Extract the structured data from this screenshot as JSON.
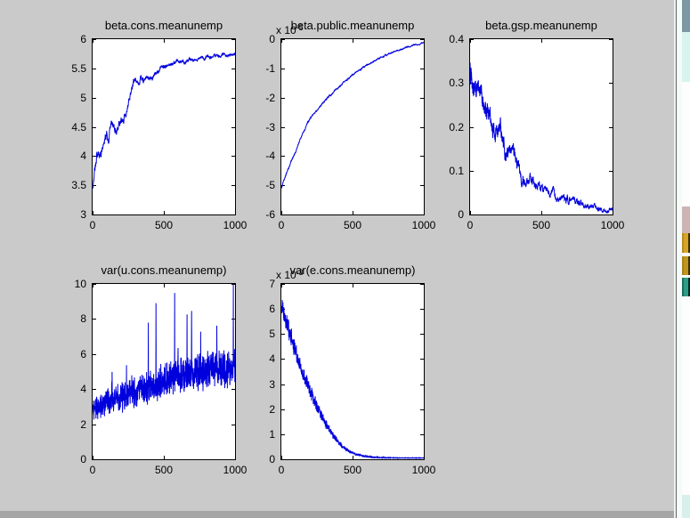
{
  "window": {
    "kind": "matlab-figure",
    "colors": {
      "figure_background": "#cacaca",
      "plot_background": "#ffffff",
      "line_color": "#0000dd",
      "axis_color": "#000000",
      "desktop_cyan": "#d9f3ee",
      "desktop_slate": "#7d97a4"
    },
    "right_edge_icons": [
      "folder-icon",
      "folder-icon",
      "application-icon"
    ]
  },
  "chart_data": [
    {
      "type": "line",
      "title": "beta.cons.meanunemp",
      "xlabel": "",
      "ylabel": "",
      "xlim": [
        0,
        1000
      ],
      "ylim": [
        3,
        6
      ],
      "xticks": [
        0,
        500,
        1000
      ],
      "xtick_labels": [
        "0",
        "500",
        "1000"
      ],
      "yticks": [
        3,
        3.5,
        4,
        4.5,
        5,
        5.5,
        6
      ],
      "ytick_labels": [
        "3",
        "3.5",
        "4",
        "4.5",
        "5",
        "5.5",
        "6"
      ],
      "seed": 7,
      "keypoints": [
        [
          0,
          3.45
        ],
        [
          15,
          3.8
        ],
        [
          30,
          4.0
        ],
        [
          45,
          3.9
        ],
        [
          60,
          4.1
        ],
        [
          80,
          4.25
        ],
        [
          100,
          4.35
        ],
        [
          115,
          4.25
        ],
        [
          130,
          4.5
        ],
        [
          150,
          4.6
        ],
        [
          165,
          4.45
        ],
        [
          180,
          4.55
        ],
        [
          200,
          4.65
        ],
        [
          215,
          4.6
        ],
        [
          230,
          4.7
        ],
        [
          250,
          4.85
        ],
        [
          265,
          5.1
        ],
        [
          280,
          5.2
        ],
        [
          295,
          5.3
        ],
        [
          310,
          5.25
        ],
        [
          325,
          5.3
        ],
        [
          340,
          5.35
        ],
        [
          355,
          5.25
        ],
        [
          370,
          5.3
        ],
        [
          385,
          5.3
        ],
        [
          400,
          5.35
        ],
        [
          420,
          5.3
        ],
        [
          440,
          5.42
        ],
        [
          460,
          5.45
        ],
        [
          480,
          5.5
        ],
        [
          500,
          5.52
        ],
        [
          540,
          5.55
        ],
        [
          580,
          5.58
        ],
        [
          620,
          5.6
        ],
        [
          660,
          5.62
        ],
        [
          700,
          5.65
        ],
        [
          750,
          5.67
        ],
        [
          800,
          5.69
        ],
        [
          850,
          5.7
        ],
        [
          900,
          5.72
        ],
        [
          950,
          5.73
        ],
        [
          1000,
          5.74
        ]
      ],
      "noise": {
        "style": "walk",
        "amp": [
          [
            0,
            0.12
          ],
          [
            150,
            0.1
          ],
          [
            300,
            0.07
          ],
          [
            500,
            0.04
          ],
          [
            1000,
            0.025
          ]
        ]
      }
    },
    {
      "type": "line",
      "title": "beta.public.meanunemp",
      "exp": {
        "prefix": "x 10",
        "sup": "-5"
      },
      "xlabel": "",
      "ylabel": "",
      "xlim": [
        0,
        1000
      ],
      "ylim": [
        -6,
        0
      ],
      "xticks": [
        0,
        500,
        1000
      ],
      "xtick_labels": [
        "0",
        "500",
        "1000"
      ],
      "yticks": [
        -6,
        -5,
        -4,
        -3,
        -2,
        -1,
        0
      ],
      "ytick_labels": [
        "-6",
        "-5",
        "-4",
        "-3",
        "-2",
        "-1",
        "0"
      ],
      "seed": 3,
      "keypoints": [
        [
          0,
          -5.1
        ],
        [
          30,
          -4.65
        ],
        [
          60,
          -4.3
        ],
        [
          100,
          -3.85
        ],
        [
          140,
          -3.35
        ],
        [
          185,
          -2.85
        ],
        [
          230,
          -2.55
        ],
        [
          280,
          -2.25
        ],
        [
          330,
          -1.98
        ],
        [
          380,
          -1.75
        ],
        [
          430,
          -1.5
        ],
        [
          480,
          -1.3
        ],
        [
          530,
          -1.1
        ],
        [
          580,
          -0.95
        ],
        [
          630,
          -0.8
        ],
        [
          680,
          -0.67
        ],
        [
          730,
          -0.55
        ],
        [
          780,
          -0.45
        ],
        [
          830,
          -0.36
        ],
        [
          880,
          -0.28
        ],
        [
          930,
          -0.21
        ],
        [
          1000,
          -0.13
        ]
      ],
      "noise": {
        "style": "walk",
        "amp": [
          [
            0,
            0.04
          ],
          [
            300,
            0.03
          ],
          [
            1000,
            0.02
          ]
        ]
      }
    },
    {
      "type": "line",
      "title": "beta.gsp.meanunemp",
      "xlabel": "",
      "ylabel": "",
      "xlim": [
        0,
        1000
      ],
      "ylim": [
        0,
        0.4
      ],
      "xticks": [
        0,
        500,
        1000
      ],
      "xtick_labels": [
        "0",
        "500",
        "1000"
      ],
      "yticks": [
        0,
        0.1,
        0.2,
        0.3,
        0.4
      ],
      "ytick_labels": [
        "0",
        "0.1",
        "0.2",
        "0.3",
        "0.4"
      ],
      "seed": 11,
      "keypoints": [
        [
          0,
          0.335
        ],
        [
          15,
          0.315
        ],
        [
          30,
          0.3
        ],
        [
          50,
          0.285
        ],
        [
          70,
          0.27
        ],
        [
          90,
          0.255
        ],
        [
          110,
          0.245
        ],
        [
          130,
          0.23
        ],
        [
          145,
          0.215
        ],
        [
          160,
          0.21
        ],
        [
          175,
          0.215
        ],
        [
          190,
          0.2
        ],
        [
          210,
          0.185
        ],
        [
          225,
          0.17
        ],
        [
          240,
          0.16
        ],
        [
          260,
          0.155
        ],
        [
          280,
          0.15
        ],
        [
          300,
          0.14
        ],
        [
          315,
          0.125
        ],
        [
          330,
          0.115
        ],
        [
          345,
          0.105
        ],
        [
          360,
          0.095
        ],
        [
          380,
          0.088
        ],
        [
          400,
          0.083
        ],
        [
          430,
          0.075
        ],
        [
          460,
          0.068
        ],
        [
          500,
          0.06
        ],
        [
          540,
          0.054
        ],
        [
          580,
          0.048
        ],
        [
          620,
          0.043
        ],
        [
          660,
          0.038
        ],
        [
          700,
          0.033
        ],
        [
          750,
          0.028
        ],
        [
          800,
          0.023
        ],
        [
          850,
          0.019
        ],
        [
          900,
          0.015
        ],
        [
          950,
          0.012
        ],
        [
          1000,
          0.01
        ]
      ],
      "noise": {
        "style": "walk",
        "amp": [
          [
            0,
            0.035
          ],
          [
            200,
            0.03
          ],
          [
            350,
            0.02
          ],
          [
            500,
            0.012
          ],
          [
            1000,
            0.006
          ]
        ]
      }
    },
    {
      "type": "line",
      "title": "var(u.cons.meanunemp)",
      "xlabel": "",
      "ylabel": "",
      "xlim": [
        0,
        1000
      ],
      "ylim": [
        0,
        10
      ],
      "xticks": [
        0,
        500,
        1000
      ],
      "xtick_labels": [
        "0",
        "500",
        "1000"
      ],
      "yticks": [
        0,
        2,
        4,
        6,
        8,
        10
      ],
      "ytick_labels": [
        "0",
        "2",
        "4",
        "6",
        "8",
        "10"
      ],
      "seed": 5,
      "keypoints": [
        [
          0,
          2.9
        ],
        [
          100,
          3.2
        ],
        [
          200,
          3.5
        ],
        [
          300,
          3.9
        ],
        [
          400,
          4.2
        ],
        [
          500,
          4.5
        ],
        [
          600,
          4.7
        ],
        [
          700,
          4.9
        ],
        [
          800,
          5.0
        ],
        [
          900,
          5.1
        ],
        [
          1000,
          5.2
        ]
      ],
      "noise": {
        "style": "band",
        "spike": 0.01,
        "amp": [
          [
            0,
            0.75
          ],
          [
            200,
            0.95
          ],
          [
            400,
            1.1
          ],
          [
            600,
            1.2
          ],
          [
            1000,
            1.25
          ]
        ]
      }
    },
    {
      "type": "line",
      "title": "var(e.cons.meanunemp)",
      "exp": {
        "prefix": "x 10",
        "sup": "-3"
      },
      "xlabel": "",
      "ylabel": "",
      "xlim": [
        0,
        1000
      ],
      "ylim": [
        0,
        7
      ],
      "xticks": [
        0,
        500,
        1000
      ],
      "xtick_labels": [
        "0",
        "500",
        "1000"
      ],
      "yticks": [
        0,
        1,
        2,
        3,
        4,
        5,
        6,
        7
      ],
      "ytick_labels": [
        "0",
        "1",
        "2",
        "3",
        "4",
        "5",
        "6",
        "7"
      ],
      "seed": 13,
      "keypoints": [
        [
          0,
          6.1
        ],
        [
          25,
          5.7
        ],
        [
          50,
          5.2
        ],
        [
          75,
          4.75
        ],
        [
          100,
          4.3
        ],
        [
          130,
          3.8
        ],
        [
          160,
          3.3
        ],
        [
          190,
          2.9
        ],
        [
          220,
          2.5
        ],
        [
          250,
          2.1
        ],
        [
          280,
          1.75
        ],
        [
          310,
          1.45
        ],
        [
          340,
          1.15
        ],
        [
          370,
          0.9
        ],
        [
          400,
          0.68
        ],
        [
          430,
          0.5
        ],
        [
          460,
          0.38
        ],
        [
          490,
          0.28
        ],
        [
          520,
          0.21
        ],
        [
          560,
          0.15
        ],
        [
          600,
          0.11
        ],
        [
          650,
          0.08
        ],
        [
          700,
          0.065
        ],
        [
          800,
          0.055
        ],
        [
          900,
          0.05
        ],
        [
          1000,
          0.05
        ]
      ],
      "noise": {
        "style": "band",
        "spike": 0.004,
        "amp": [
          [
            0,
            0.45
          ],
          [
            100,
            0.4
          ],
          [
            200,
            0.32
          ],
          [
            300,
            0.22
          ],
          [
            400,
            0.13
          ],
          [
            500,
            0.07
          ],
          [
            600,
            0.03
          ],
          [
            700,
            0.015
          ],
          [
            1000,
            0.01
          ]
        ]
      }
    }
  ]
}
